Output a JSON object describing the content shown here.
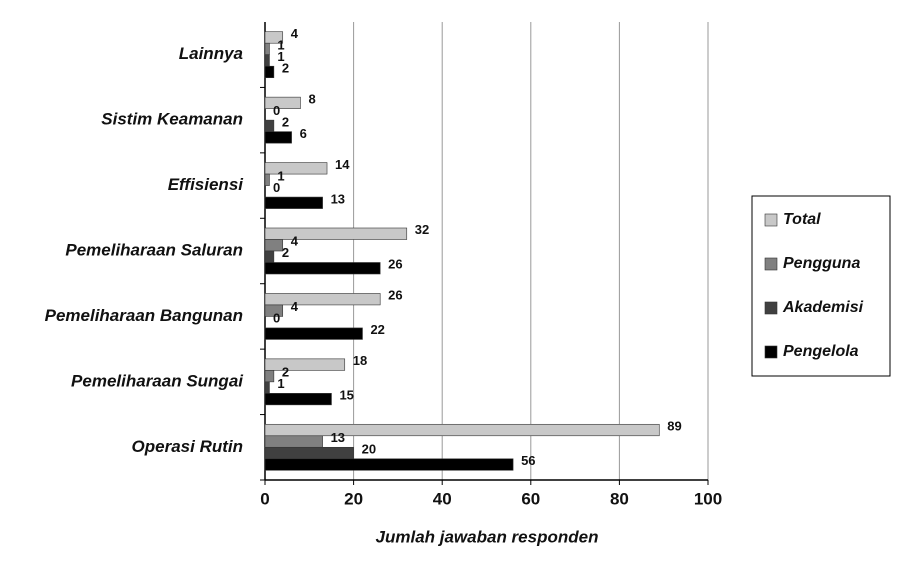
{
  "chart_data": {
    "type": "horizontal-bar",
    "categories": [
      "Lainnya",
      "Sistim Keamanan",
      "Effisiensi",
      "Pemeliharaan Saluran",
      "Pemeliharaan Bangunan",
      "Pemeliharaan Sungai",
      "Operasi Rutin"
    ],
    "series": [
      {
        "name": "Total",
        "color": "#c8c8c8",
        "values": [
          4,
          8,
          14,
          32,
          26,
          18,
          89
        ]
      },
      {
        "name": "Pengguna",
        "color": "#808080",
        "values": [
          1,
          0,
          1,
          4,
          4,
          2,
          13
        ]
      },
      {
        "name": "Akademisi",
        "color": "#404040",
        "values": [
          1,
          2,
          0,
          2,
          0,
          1,
          20
        ]
      },
      {
        "name": "Pengelola",
        "color": "#000000",
        "values": [
          2,
          6,
          13,
          26,
          22,
          15,
          56
        ]
      }
    ],
    "x_label": "Jumlah jawaban responden",
    "xlim": [
      0,
      100
    ],
    "xticks": [
      0,
      20,
      40,
      60,
      80,
      100
    ],
    "grid": true,
    "legend": "right"
  }
}
